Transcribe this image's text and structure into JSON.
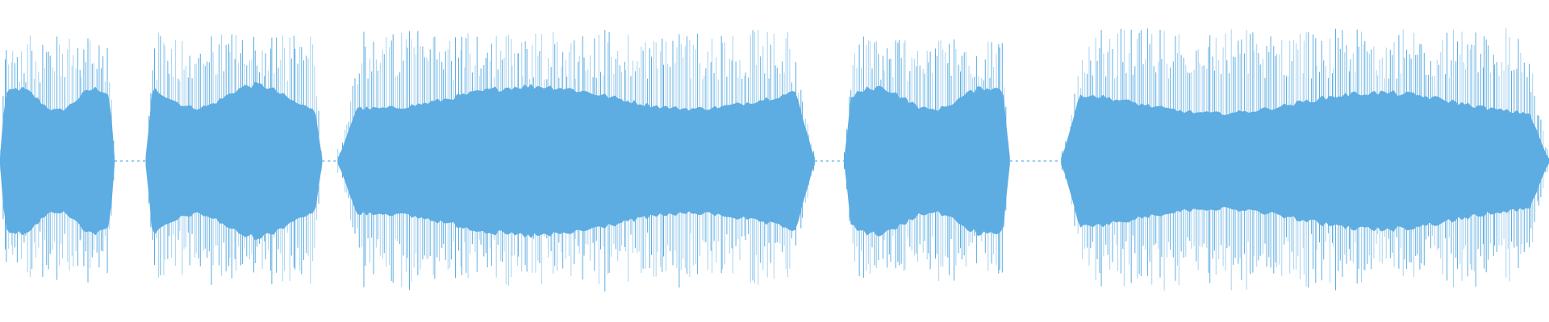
{
  "waveform": {
    "colors": {
      "background": "#ffffff",
      "body": "#5dade2",
      "fringe": "#a9d3f0",
      "silence": "#5dade2"
    },
    "segments": [
      {
        "start_fraction": 0.0,
        "end_fraction": 0.074,
        "peak_level": 0.92,
        "body_level": 0.55,
        "silent": false
      },
      {
        "start_fraction": 0.074,
        "end_fraction": 0.094,
        "peak_level": 0.0,
        "body_level": 0.0,
        "silent": true
      },
      {
        "start_fraction": 0.094,
        "end_fraction": 0.208,
        "peak_level": 0.94,
        "body_level": 0.58,
        "silent": false
      },
      {
        "start_fraction": 0.208,
        "end_fraction": 0.218,
        "peak_level": 0.0,
        "body_level": 0.0,
        "silent": true
      },
      {
        "start_fraction": 0.218,
        "end_fraction": 0.526,
        "peak_level": 0.96,
        "body_level": 0.57,
        "silent": false
      },
      {
        "start_fraction": 0.526,
        "end_fraction": 0.545,
        "peak_level": 0.0,
        "body_level": 0.0,
        "silent": true
      },
      {
        "start_fraction": 0.545,
        "end_fraction": 0.652,
        "peak_level": 0.93,
        "body_level": 0.56,
        "silent": false
      },
      {
        "start_fraction": 0.652,
        "end_fraction": 0.685,
        "peak_level": 0.0,
        "body_level": 0.0,
        "silent": true
      },
      {
        "start_fraction": 0.685,
        "end_fraction": 1.0,
        "peak_level": 0.97,
        "body_level": 0.52,
        "silent": false
      }
    ]
  }
}
